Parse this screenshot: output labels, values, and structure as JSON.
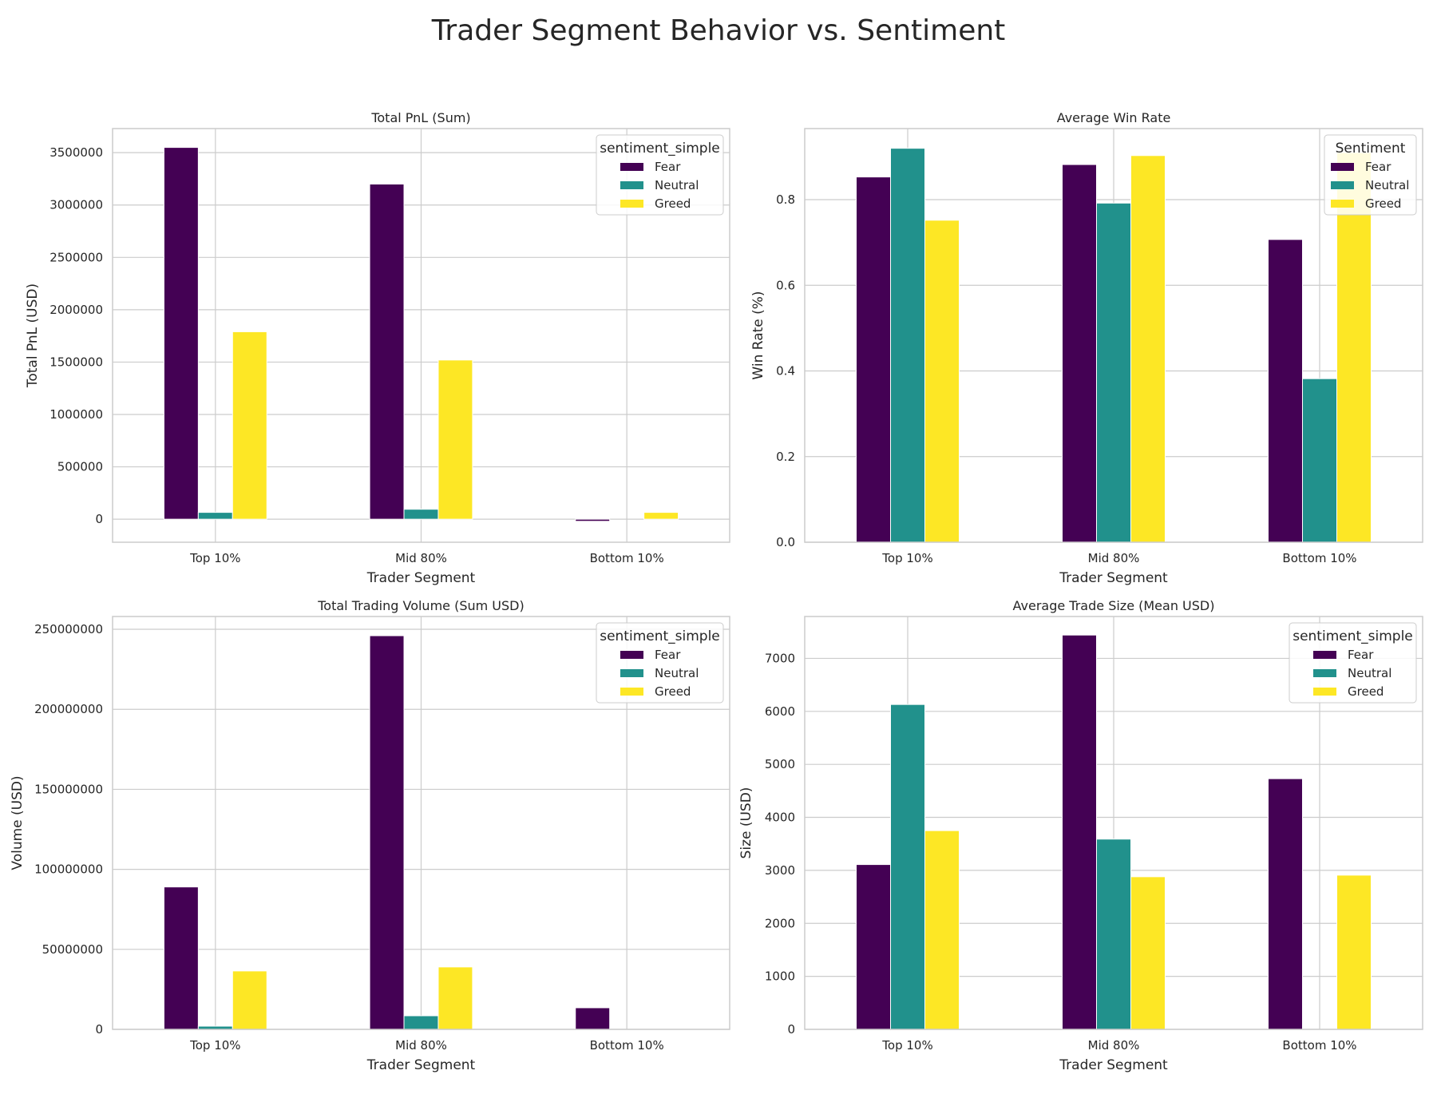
{
  "title": "Trader Segment Behavior vs. Sentiment",
  "colors": {
    "Fear": "#440154",
    "Neutral": "#21918c",
    "Greed": "#fde725"
  },
  "chart_data": [
    {
      "type": "bar",
      "title": "Total PnL (Sum)",
      "xlabel": "Trader Segment",
      "ylabel": "Total PnL (USD)",
      "categories": [
        "Top 10%",
        "Mid 80%",
        "Bottom 10%"
      ],
      "series": [
        {
          "name": "Fear",
          "values": [
            3550000,
            3200000,
            -20000
          ]
        },
        {
          "name": "Neutral",
          "values": [
            65000,
            95000,
            0
          ]
        },
        {
          "name": "Greed",
          "values": [
            1790000,
            1520000,
            65000
          ]
        }
      ],
      "ylim": [
        -220000,
        3730000
      ],
      "yticks": [
        0,
        500000,
        1000000,
        1500000,
        2000000,
        2500000,
        3000000,
        3500000
      ],
      "ytick_labels": [
        "0",
        "500000",
        "1000000",
        "1500000",
        "2000000",
        "2500000",
        "3000000",
        "3500000"
      ],
      "legend_title": "sentiment_simple",
      "legend_loc": "upper right",
      "grid": true
    },
    {
      "type": "bar",
      "title": "Average Win Rate",
      "xlabel": "Trader Segment",
      "ylabel": "Win Rate (%)",
      "categories": [
        "Top 10%",
        "Mid 80%",
        "Bottom 10%"
      ],
      "series": [
        {
          "name": "Fear",
          "values": [
            0.853,
            0.882,
            0.707
          ]
        },
        {
          "name": "Neutral",
          "values": [
            0.92,
            0.792,
            0.382
          ]
        },
        {
          "name": "Greed",
          "values": [
            0.752,
            0.903,
            0.91
          ]
        }
      ],
      "ylim": [
        0,
        0.966
      ],
      "yticks": [
        0,
        0.2,
        0.4,
        0.6,
        0.8
      ],
      "ytick_labels": [
        "0.0",
        "0.2",
        "0.4",
        "0.6",
        "0.8"
      ],
      "legend_title": "Sentiment",
      "legend_loc": "upper right",
      "grid": true
    },
    {
      "type": "bar",
      "title": "Total Trading Volume (Sum USD)",
      "xlabel": "Trader Segment",
      "ylabel": "Volume (USD)",
      "categories": [
        "Top 10%",
        "Mid 80%",
        "Bottom 10%"
      ],
      "series": [
        {
          "name": "Fear",
          "values": [
            89000000,
            246000000,
            13500000
          ]
        },
        {
          "name": "Neutral",
          "values": [
            2000000,
            8500000,
            0
          ]
        },
        {
          "name": "Greed",
          "values": [
            36500000,
            39000000,
            0
          ]
        }
      ],
      "ylim": [
        0,
        258000000
      ],
      "yticks": [
        0,
        50000000,
        100000000,
        150000000,
        200000000,
        250000000
      ],
      "ytick_labels": [
        "0",
        "50000000",
        "100000000",
        "150000000",
        "200000000",
        "250000000"
      ],
      "legend_title": "sentiment_simple",
      "legend_loc": "upper right",
      "grid": true
    },
    {
      "type": "bar",
      "title": "Average Trade Size (Mean USD)",
      "xlabel": "Trader Segment",
      "ylabel": "Size (USD)",
      "categories": [
        "Top 10%",
        "Mid 80%",
        "Bottom 10%"
      ],
      "series": [
        {
          "name": "Fear",
          "values": [
            3110,
            7440,
            4730
          ]
        },
        {
          "name": "Neutral",
          "values": [
            6130,
            3590,
            0
          ]
        },
        {
          "name": "Greed",
          "values": [
            3750,
            2880,
            2910
          ]
        }
      ],
      "ylim": [
        0,
        7790
      ],
      "yticks": [
        0,
        1000,
        2000,
        3000,
        4000,
        5000,
        6000,
        7000
      ],
      "ytick_labels": [
        "0",
        "1000",
        "2000",
        "3000",
        "4000",
        "5000",
        "6000",
        "7000"
      ],
      "legend_title": "sentiment_simple",
      "legend_loc": "upper right",
      "grid": true
    }
  ]
}
